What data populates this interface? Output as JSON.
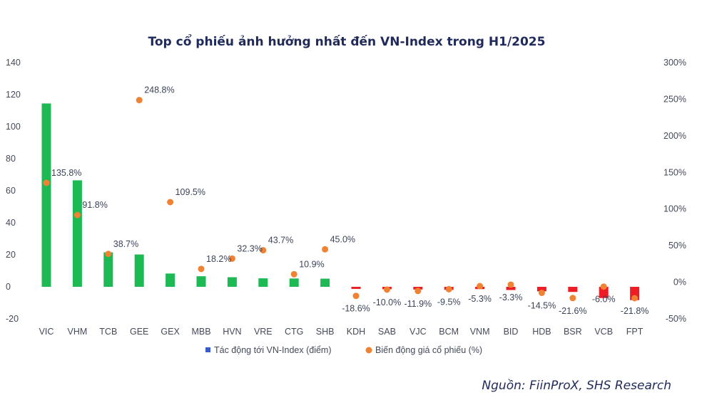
{
  "chart_data": {
    "type": "bar",
    "title": "Top cổ phiếu ảnh hưởng nhất đến VN-Index trong H1/2025",
    "categories": [
      "VIC",
      "VHM",
      "TCB",
      "GEE",
      "GEX",
      "MBB",
      "HVN",
      "VRE",
      "CTG",
      "SHB",
      "KDH",
      "SAB",
      "VJC",
      "BCM",
      "VNM",
      "BID",
      "HDB",
      "BSR",
      "VCB",
      "FPT"
    ],
    "series": [
      {
        "name": "Tác động tới VN-Index (điểm)",
        "type": "bar",
        "axis": "left",
        "values": [
          114.5,
          66.5,
          21.5,
          20.2,
          8.3,
          6.6,
          6.0,
          5.3,
          5.2,
          5.1,
          -1.3,
          -1.5,
          -1.7,
          -1.9,
          -1.4,
          -2.0,
          -2.8,
          -3.2,
          -7.0,
          -8.3
        ]
      },
      {
        "name": "Biến động giá cổ phiếu (%)",
        "type": "scatter",
        "axis": "right",
        "values": [
          135.8,
          91.8,
          38.7,
          248.8,
          109.5,
          18.2,
          32.3,
          43.7,
          10.9,
          45.0,
          -18.6,
          -10.0,
          -11.9,
          -9.5,
          -5.3,
          -3.3,
          -14.5,
          -21.6,
          -6.0,
          -21.8
        ],
        "labels": [
          "135.8%",
          "91.8%",
          "38.7%",
          "248.8%",
          "109.5%",
          "18.2%",
          "32.3%",
          "43.7%",
          "10.9%",
          "45.0%",
          "-18.6%",
          "-10.0%",
          "-11.9%",
          "-9.5%",
          "-5.3%",
          "-3.3%",
          "-14.5%",
          "-21.6%",
          "-6.0%",
          "-21.8%"
        ]
      }
    ],
    "y_left": {
      "ylim": [
        -20,
        140
      ],
      "ticks": [
        "140",
        "120",
        "100",
        "80",
        "60",
        "40",
        "20",
        "0",
        "-20"
      ]
    },
    "y_right": {
      "ylim": [
        -50,
        300
      ],
      "ticks": [
        "300%",
        "250%",
        "200%",
        "150%",
        "100%",
        "50%",
        "0%",
        "-50%"
      ]
    },
    "colors": {
      "positive_bar": "#1db954",
      "negative_bar": "#ee1c25",
      "dot": "#f08233",
      "legend_bar_marker": "#3a5bc7"
    },
    "legend_position": "bottom",
    "grid": false
  },
  "source": "Nguồn: FiinProX, SHS Research"
}
